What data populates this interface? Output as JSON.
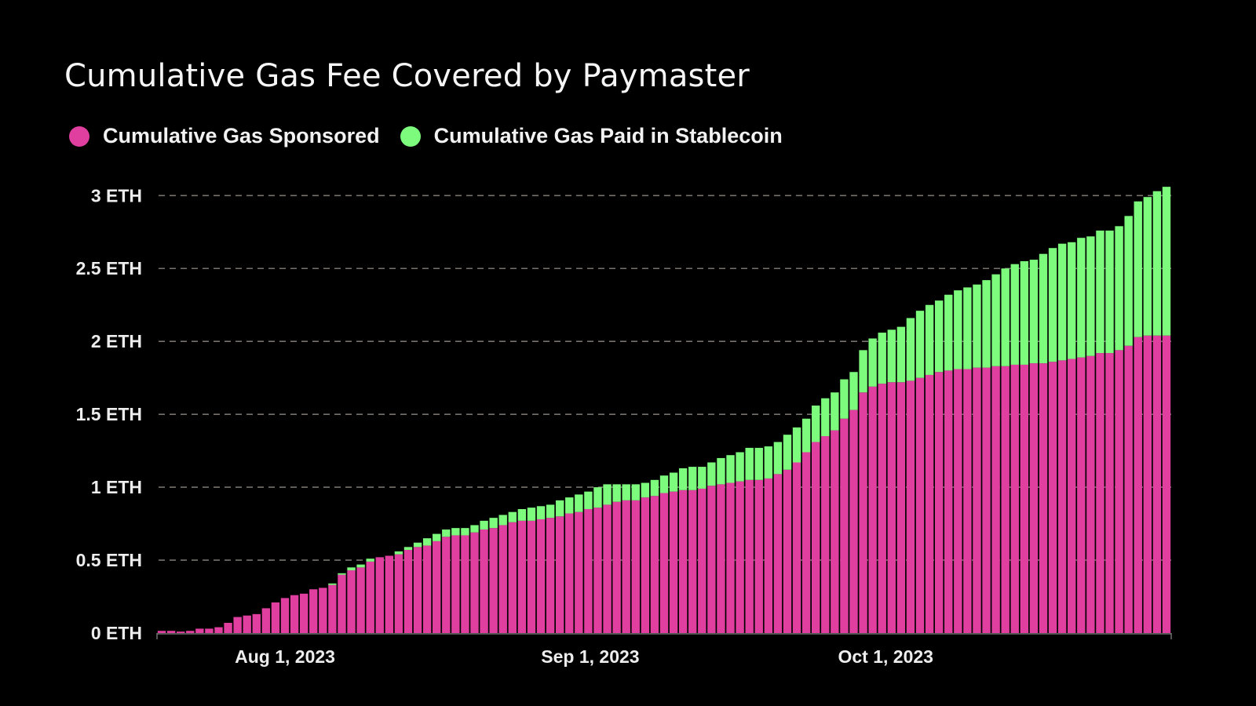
{
  "chart_data": {
    "type": "bar",
    "stacked": true,
    "title": "Cumulative Gas Fee Covered by Paymaster",
    "xlabel": "",
    "ylabel": "",
    "ylim": [
      0,
      3.05
    ],
    "yticks": [
      0,
      0.5,
      1,
      1.5,
      2,
      2.5,
      3
    ],
    "ytick_labels": [
      "0 ETH",
      "0.5 ETH",
      "1 ETH",
      "1.5 ETH",
      "2 ETH",
      "2.5 ETH",
      "3 ETH"
    ],
    "xtick_labels": [
      {
        "label": "Aug 1, 2023",
        "date": "2023-08-01"
      },
      {
        "label": "Sep 1, 2023",
        "date": "2023-09-01"
      },
      {
        "label": "Oct 1, 2023",
        "date": "2023-10-01"
      }
    ],
    "x_start": "2023-07-19",
    "x_end": "2023-10-30",
    "grid": "horizontal dashed",
    "legend_position": "top-left",
    "series": [
      {
        "name": "Cumulative Gas Sponsored",
        "color": "#e03fa0",
        "values": [
          0.015,
          0.015,
          0.01,
          0.015,
          0.03,
          0.03,
          0.04,
          0.07,
          0.11,
          0.12,
          0.13,
          0.17,
          0.21,
          0.24,
          0.26,
          0.27,
          0.3,
          0.31,
          0.33,
          0.4,
          0.43,
          0.45,
          0.49,
          0.52,
          0.53,
          0.54,
          0.57,
          0.59,
          0.6,
          0.63,
          0.66,
          0.67,
          0.67,
          0.69,
          0.71,
          0.72,
          0.74,
          0.76,
          0.77,
          0.77,
          0.78,
          0.79,
          0.8,
          0.82,
          0.83,
          0.85,
          0.86,
          0.88,
          0.9,
          0.91,
          0.91,
          0.93,
          0.94,
          0.96,
          0.97,
          0.98,
          0.98,
          0.99,
          1.01,
          1.02,
          1.03,
          1.04,
          1.05,
          1.05,
          1.06,
          1.09,
          1.12,
          1.17,
          1.24,
          1.31,
          1.35,
          1.39,
          1.47,
          1.53,
          1.65,
          1.69,
          1.71,
          1.72,
          1.72,
          1.73,
          1.75,
          1.77,
          1.79,
          1.8,
          1.81,
          1.81,
          1.82,
          1.82,
          1.83,
          1.83,
          1.84,
          1.84,
          1.85,
          1.85,
          1.86,
          1.87,
          1.88,
          1.89,
          1.9,
          1.92,
          1.92,
          1.94,
          1.97,
          2.03,
          2.04,
          2.04,
          2.04
        ]
      },
      {
        "name": "Cumulative Gas Paid in Stablecoin",
        "color": "#7dfb7d",
        "values": [
          0,
          0,
          0,
          0,
          0,
          0,
          0,
          0,
          0,
          0,
          0,
          0,
          0,
          0,
          0,
          0,
          0,
          0,
          0.01,
          0.01,
          0.02,
          0.02,
          0.02,
          0.0,
          0.0,
          0.02,
          0.02,
          0.03,
          0.05,
          0.05,
          0.05,
          0.05,
          0.05,
          0.05,
          0.06,
          0.07,
          0.07,
          0.07,
          0.08,
          0.09,
          0.09,
          0.09,
          0.11,
          0.11,
          0.12,
          0.12,
          0.14,
          0.14,
          0.12,
          0.11,
          0.11,
          0.1,
          0.11,
          0.12,
          0.13,
          0.15,
          0.16,
          0.15,
          0.16,
          0.18,
          0.19,
          0.2,
          0.22,
          0.22,
          0.22,
          0.22,
          0.24,
          0.24,
          0.23,
          0.25,
          0.26,
          0.26,
          0.27,
          0.26,
          0.29,
          0.33,
          0.35,
          0.36,
          0.38,
          0.43,
          0.46,
          0.48,
          0.49,
          0.52,
          0.54,
          0.56,
          0.57,
          0.6,
          0.63,
          0.67,
          0.69,
          0.71,
          0.71,
          0.75,
          0.78,
          0.8,
          0.8,
          0.82,
          0.82,
          0.84,
          0.84,
          0.85,
          0.89,
          0.93,
          0.95,
          0.99,
          1.02
        ]
      }
    ]
  }
}
